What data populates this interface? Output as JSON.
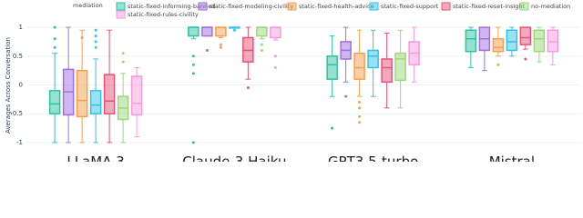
{
  "chart_data": {
    "type": "box",
    "y_label": "Averages Across Conversation",
    "legend_title": "mediation",
    "categories": [
      "LLaMA 3",
      "Claude-3 Haiku",
      "GPT3.5-turbo",
      "Mistral"
    ],
    "ylim": [
      -1.08,
      1.08
    ],
    "yticks": [
      -1,
      -0.5,
      0,
      0.5,
      1
    ],
    "grid": true,
    "series": [
      {
        "name": "static-fixed-informing-banned",
        "color": "#2ec4a0",
        "min": [
          -1,
          0.8,
          -0.2,
          0.3
        ],
        "q1": [
          -0.5,
          0.85,
          0.1,
          0.58
        ],
        "median": [
          -0.33,
          1,
          0.35,
          0.8
        ],
        "q3": [
          -0.1,
          1,
          0.5,
          0.95
        ],
        "max": [
          0.55,
          1,
          0.85,
          1
        ],
        "outliers": [
          [
            1,
            0.8,
            0.65
          ],
          [
            0.5,
            0.35,
            0.2,
            -1
          ],
          [
            -0.75
          ],
          []
        ]
      },
      {
        "name": "static-fixed-modeling-civility",
        "color": "#a170e0",
        "min": [
          -1,
          0.85,
          0.05,
          0.25
        ],
        "q1": [
          -0.52,
          0.85,
          0.45,
          0.6
        ],
        "median": [
          -0.12,
          1,
          0.6,
          0.8
        ],
        "q3": [
          0.27,
          1,
          0.75,
          1
        ],
        "max": [
          1,
          1,
          1,
          1
        ],
        "outliers": [
          [],
          [
            0.6
          ],
          [
            -0.2
          ],
          []
        ]
      },
      {
        "name": "static-fixed-health-advice",
        "color": "#f5a04e",
        "min": [
          -1,
          0.82,
          -0.2,
          0.5
        ],
        "q1": [
          -0.55,
          0.85,
          0.1,
          0.58
        ],
        "median": [
          -0.27,
          1,
          0.3,
          0.65
        ],
        "q3": [
          0.25,
          1,
          0.55,
          0.8
        ],
        "max": [
          0.95,
          1,
          0.95,
          1
        ],
        "outliers": [
          [
            0.82
          ],
          [
            0.65,
            0.7
          ],
          [
            -0.3,
            -0.4,
            -0.55,
            -0.65
          ],
          [
            0.35
          ]
        ]
      },
      {
        "name": "static-fixed-support",
        "color": "#33c3e8",
        "min": [
          -1,
          1,
          -0.2,
          0.5
        ],
        "q1": [
          -0.5,
          1,
          0.3,
          0.6
        ],
        "median": [
          -0.35,
          1,
          0.5,
          0.75
        ],
        "q3": [
          -0.1,
          1,
          0.6,
          0.95
        ],
        "max": [
          0.45,
          1,
          0.95,
          1
        ],
        "outliers": [
          [
            0.65,
            0.75,
            0.85,
            0.95
          ],
          [
            0.95
          ],
          [],
          []
        ]
      },
      {
        "name": "static-fixed-reset-insight",
        "color": "#e8527a",
        "min": [
          -1,
          0.1,
          -0.4,
          0.62
        ],
        "q1": [
          -0.5,
          0.4,
          0.05,
          0.7
        ],
        "median": [
          -0.28,
          0.6,
          0.3,
          0.82
        ],
        "q3": [
          0.18,
          0.82,
          0.45,
          1
        ],
        "max": [
          0.95,
          1,
          0.9,
          1
        ],
        "outliers": [
          [],
          [
            -0.05
          ],
          [],
          [
            0.45
          ]
        ]
      },
      {
        "name": "no-mediation",
        "color": "#9ad87a",
        "min": [
          -1,
          0.8,
          -0.4,
          0.4
        ],
        "q1": [
          -0.6,
          0.85,
          0.08,
          0.58
        ],
        "median": [
          -0.4,
          1,
          0.45,
          0.8
        ],
        "q3": [
          -0.2,
          1,
          0.55,
          0.95
        ],
        "max": [
          0.2,
          1,
          0.95,
          1
        ],
        "outliers": [
          [
            0.55,
            0.4
          ],
          [
            0.6,
            0.7
          ],
          [],
          []
        ]
      },
      {
        "name": "static-fixed-rules-civility",
        "color": "#f59be0",
        "min": [
          -0.9,
          0.78,
          0.05,
          0.35
        ],
        "q1": [
          -0.52,
          0.82,
          0.35,
          0.58
        ],
        "median": [
          -0.32,
          1,
          0.55,
          0.75
        ],
        "q3": [
          0.15,
          1,
          0.75,
          0.95
        ],
        "max": [
          0.3,
          1,
          1,
          1
        ],
        "outliers": [
          [],
          [
            0.5,
            0.3
          ],
          [],
          []
        ]
      }
    ]
  }
}
